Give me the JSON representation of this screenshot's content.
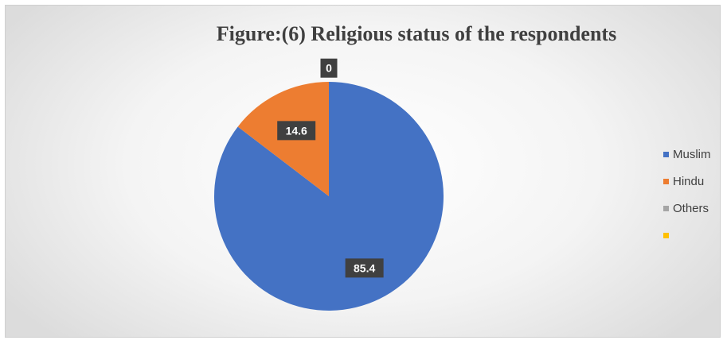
{
  "chart_data": {
    "type": "pie",
    "title": "Figure:(6) Religious status of the respondents",
    "slices": [
      {
        "label": "Muslim",
        "value": 85.4,
        "color": "#4472C4"
      },
      {
        "label": "Hindu",
        "value": 14.6,
        "color": "#ED7D31"
      },
      {
        "label": "Others",
        "value": 0,
        "color": "#A5A5A5"
      },
      {
        "label": "",
        "value": null,
        "color": "#FFC000"
      }
    ],
    "data_labels": [
      "85.4",
      "14.6",
      "0"
    ],
    "legend_placement": "right"
  }
}
